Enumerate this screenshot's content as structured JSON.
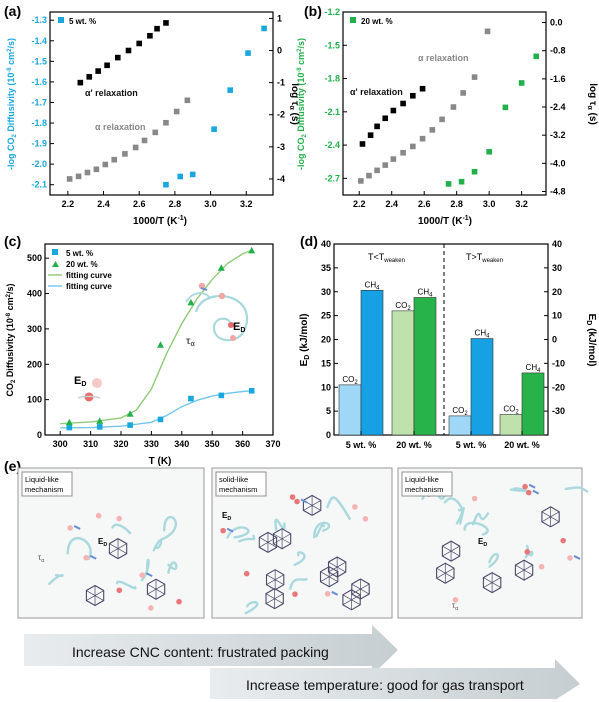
{
  "panels": {
    "a": {
      "label": "(a)",
      "legend": "5 wt. %",
      "xlabel_main": "1000/T (K",
      "xlabel_exp": "-1",
      "xlabel_end": ")",
      "ylabel_left_pre": "-log CO",
      "ylabel_left_sub": "2",
      "ylabel_left_mid": " Diffusivity (10",
      "ylabel_left_exp": "-8",
      "ylabel_left_post": " cm",
      "ylabel_left_exp2": "2",
      "ylabel_left_end": "/s)",
      "ylabel_right_pre": "log τ",
      "ylabel_right_sub": "α",
      "ylabel_right_end": " (s)",
      "annot_alpha_prime": "α' relaxation",
      "annot_alpha": "α relaxation",
      "xticks": [
        "2.2",
        "2.4",
        "2.6",
        "2.8",
        "3.0",
        "3.2"
      ],
      "yticks_left": [
        "-1.3",
        "-1.4",
        "-1.5",
        "-1.6",
        "-1.7",
        "-1.8",
        "-1.9",
        "-2.0",
        "-2.1"
      ],
      "yticks_right": [
        "1",
        "0",
        "-1",
        "-2",
        "-3",
        "-4"
      ]
    },
    "b": {
      "label": "(b)",
      "legend": "20 wt. %",
      "annot_alpha_prime": "α' relaxation",
      "annot_alpha": "α relaxation",
      "xticks": [
        "2.2",
        "2.4",
        "2.6",
        "2.8",
        "3.0",
        "3.2"
      ],
      "yticks_left": [
        "-1.2",
        "-1.5",
        "-1.8",
        "-2.1",
        "-2.4",
        "-2.7"
      ],
      "yticks_right": [
        "0.0",
        "-0.8",
        "-1.6",
        "-2.4",
        "-3.2",
        "-4.0",
        "-4.8"
      ]
    },
    "c": {
      "label": "(c)",
      "legend": [
        "5 wt. %",
        "20 wt. %",
        "fitting curve",
        "fitting curve"
      ],
      "xlabel": "T (K)",
      "ylabel_pre": "CO",
      "ylabel_sub": "2",
      "ylabel_mid": " Diffusivity (10",
      "ylabel_exp": "-8",
      "ylabel_post": " cm",
      "ylabel_exp2": "2",
      "ylabel_end": "/s)",
      "annot_ed_main": "E",
      "annot_ed_sub": "D",
      "annot_tau_main": "τ",
      "annot_tau_sub": "α",
      "xticks": [
        "300",
        "310",
        "320",
        "330",
        "340",
        "350",
        "360",
        "370"
      ],
      "yticks": [
        "0",
        "100",
        "200",
        "300",
        "400",
        "500"
      ]
    },
    "d": {
      "label": "(d)",
      "region_left_pre": "T<T",
      "region_left_sub": "weaken",
      "region_right_pre": "T>T",
      "region_right_sub": "weaken",
      "ylabel_left_main": "E",
      "ylabel_left_sub": "D",
      "ylabel_left_end": " (kJ/mol)",
      "ylabel_right_main": "E",
      "ylabel_right_sub": "D",
      "ylabel_right_end": " (kJ/mol)",
      "xticks": [
        "5 wt. %",
        "20 wt. %",
        "5 wt. %",
        "20 wt. %"
      ],
      "bar_label_co2_main": "CO",
      "bar_label_co2_sub": "2",
      "bar_label_ch4_main": "CH",
      "bar_label_ch4_sub": "4",
      "yticks_left": [
        "0",
        "5",
        "10",
        "15",
        "20",
        "25",
        "30",
        "35",
        "40"
      ],
      "yticks_right": [
        "-30",
        "-20",
        "-10",
        "0",
        "10",
        "20",
        "30",
        "40"
      ]
    },
    "e": {
      "label": "(e)",
      "box1_title": [
        "Liquid-like",
        "mechanism"
      ],
      "box2_title": [
        "solid-like",
        "mechanism"
      ],
      "box3_title": [
        "Liquid-like",
        "mechanism"
      ],
      "ed_main": "E",
      "ed_sub": "D",
      "tau_main": "τ",
      "tau_sub": "α",
      "arrow1": "Increase CNC content: frustrated packing",
      "arrow2": "Increase temperature: good for gas transport"
    }
  },
  "chart_data": [
    {
      "type": "scatter",
      "panel": "a",
      "xlabel": "1000/T (K-1)",
      "ylabel": "-log CO2 Diffusivity (10-8 cm2/s)",
      "ylabel_right": "log τα (s)",
      "xlim": [
        2.1,
        3.35
      ],
      "ylim": [
        -2.15,
        -1.26
      ],
      "ylim_right": [
        -4.5,
        1.2
      ],
      "series": [
        {
          "name": "5 wt. %",
          "axis": "left",
          "color": "#1aa7e0",
          "x": [
            2.75,
            2.83,
            2.9,
            3.02,
            3.11,
            3.21,
            3.3
          ],
          "y": [
            -2.1,
            -2.06,
            -2.05,
            -1.83,
            -1.64,
            -1.46,
            -1.34
          ]
        },
        {
          "axis": "right",
          "color": "#000000",
          "x": [
            2.27,
            2.32,
            2.37,
            2.42,
            2.48,
            2.54,
            2.6,
            2.66,
            2.7,
            2.75
          ],
          "y": [
            -1.0,
            -0.82,
            -0.64,
            -0.46,
            -0.22,
            0.0,
            0.22,
            0.46,
            0.68,
            0.86
          ]
        },
        {
          "axis": "right",
          "color": "#888888",
          "x": [
            2.21,
            2.26,
            2.31,
            2.36,
            2.41,
            2.46,
            2.52,
            2.58,
            2.63,
            2.69,
            2.75,
            2.81,
            2.87
          ],
          "y": [
            -4.0,
            -3.92,
            -3.8,
            -3.7,
            -3.55,
            -3.4,
            -3.22,
            -3.02,
            -2.8,
            -2.55,
            -2.25,
            -1.9,
            -1.55
          ]
        }
      ]
    },
    {
      "type": "scatter",
      "panel": "b",
      "xlabel": "1000/T (K-1)",
      "ylabel": "-log CO2 Diffusivity (10-8 cm2/s)",
      "ylabel_right": "log τα (s)",
      "xlim": [
        2.1,
        3.35
      ],
      "ylim": [
        -2.85,
        -1.2
      ],
      "ylim_right": [
        -4.9,
        0.3
      ],
      "series": [
        {
          "name": "20 wt. %",
          "axis": "left",
          "color": "#22b04b",
          "x": [
            2.75,
            2.83,
            2.91,
            3.0,
            3.1,
            3.2,
            3.29
          ],
          "y": [
            -2.75,
            -2.73,
            -2.64,
            -2.46,
            -2.06,
            -1.84,
            -1.6
          ]
        },
        {
          "axis": "right",
          "color": "#000000",
          "x": [
            2.22,
            2.27,
            2.31,
            2.36,
            2.41,
            2.47,
            2.53,
            2.59
          ],
          "y": [
            -3.45,
            -3.2,
            -2.95,
            -2.72,
            -2.5,
            -2.3,
            -2.08,
            -1.88
          ]
        },
        {
          "axis": "right",
          "color": "#888888",
          "x": [
            2.21,
            2.26,
            2.31,
            2.36,
            2.41,
            2.47,
            2.53,
            2.59,
            2.65,
            2.71,
            2.78,
            2.84,
            2.91,
            2.99
          ],
          "y": [
            -4.5,
            -4.35,
            -4.2,
            -4.05,
            -3.88,
            -3.7,
            -3.52,
            -3.3,
            -3.05,
            -2.75,
            -2.4,
            -2.0,
            -1.55,
            -0.25
          ]
        }
      ]
    },
    {
      "type": "line",
      "panel": "c",
      "xlabel": "T (K)",
      "ylabel": "CO2 Diffusivity (10-8 cm2/s)",
      "xlim": [
        295,
        370
      ],
      "ylim": [
        0,
        540
      ],
      "series": [
        {
          "name": "5 wt. %",
          "marker": "square",
          "color": "#1aa7e0",
          "x": [
            303,
            313,
            323,
            333,
            343,
            353,
            363
          ],
          "y": [
            21,
            23,
            28,
            44,
            103,
            112,
            125
          ]
        },
        {
          "name": "20 wt. %",
          "marker": "triangle",
          "color": "#22b04b",
          "x": [
            303,
            313,
            323,
            333,
            343,
            353,
            363
          ],
          "y": [
            36,
            40,
            60,
            255,
            375,
            473,
            522
          ]
        },
        {
          "name": "fitting curve",
          "line": true,
          "color": "#8fcb78",
          "x": [
            300,
            310,
            320,
            325,
            330,
            335,
            340,
            345,
            350,
            355,
            360,
            363
          ],
          "y": [
            32,
            37,
            48,
            70,
            130,
            230,
            315,
            385,
            440,
            485,
            512,
            522
          ]
        },
        {
          "name": "fitting curve",
          "line": true,
          "color": "#74c6ec",
          "x": [
            300,
            310,
            320,
            330,
            335,
            340,
            345,
            350,
            355,
            360,
            363
          ],
          "y": [
            20,
            21,
            25,
            36,
            55,
            80,
            98,
            110,
            118,
            123,
            125
          ]
        }
      ]
    },
    {
      "type": "bar",
      "panel": "d",
      "ylabel": "ED (kJ/mol)",
      "categories": [
        "5 wt. %",
        "20 wt. %",
        "5 wt. %",
        "20 wt. %"
      ],
      "ylim": [
        0,
        40
      ],
      "series": [
        {
          "name": "CO2",
          "values": [
            10.5,
            26.0,
            4.0,
            4.3
          ],
          "colors": [
            "#9fd7f6",
            "#bfe2ac",
            "#9fd7f6",
            "#bfe2ac"
          ]
        },
        {
          "name": "CH4",
          "values": [
            30.3,
            28.8,
            20.2,
            13.0
          ],
          "colors": [
            "#15a1e3",
            "#27b24a",
            "#15a1e3",
            "#27b24a"
          ]
        }
      ]
    }
  ]
}
